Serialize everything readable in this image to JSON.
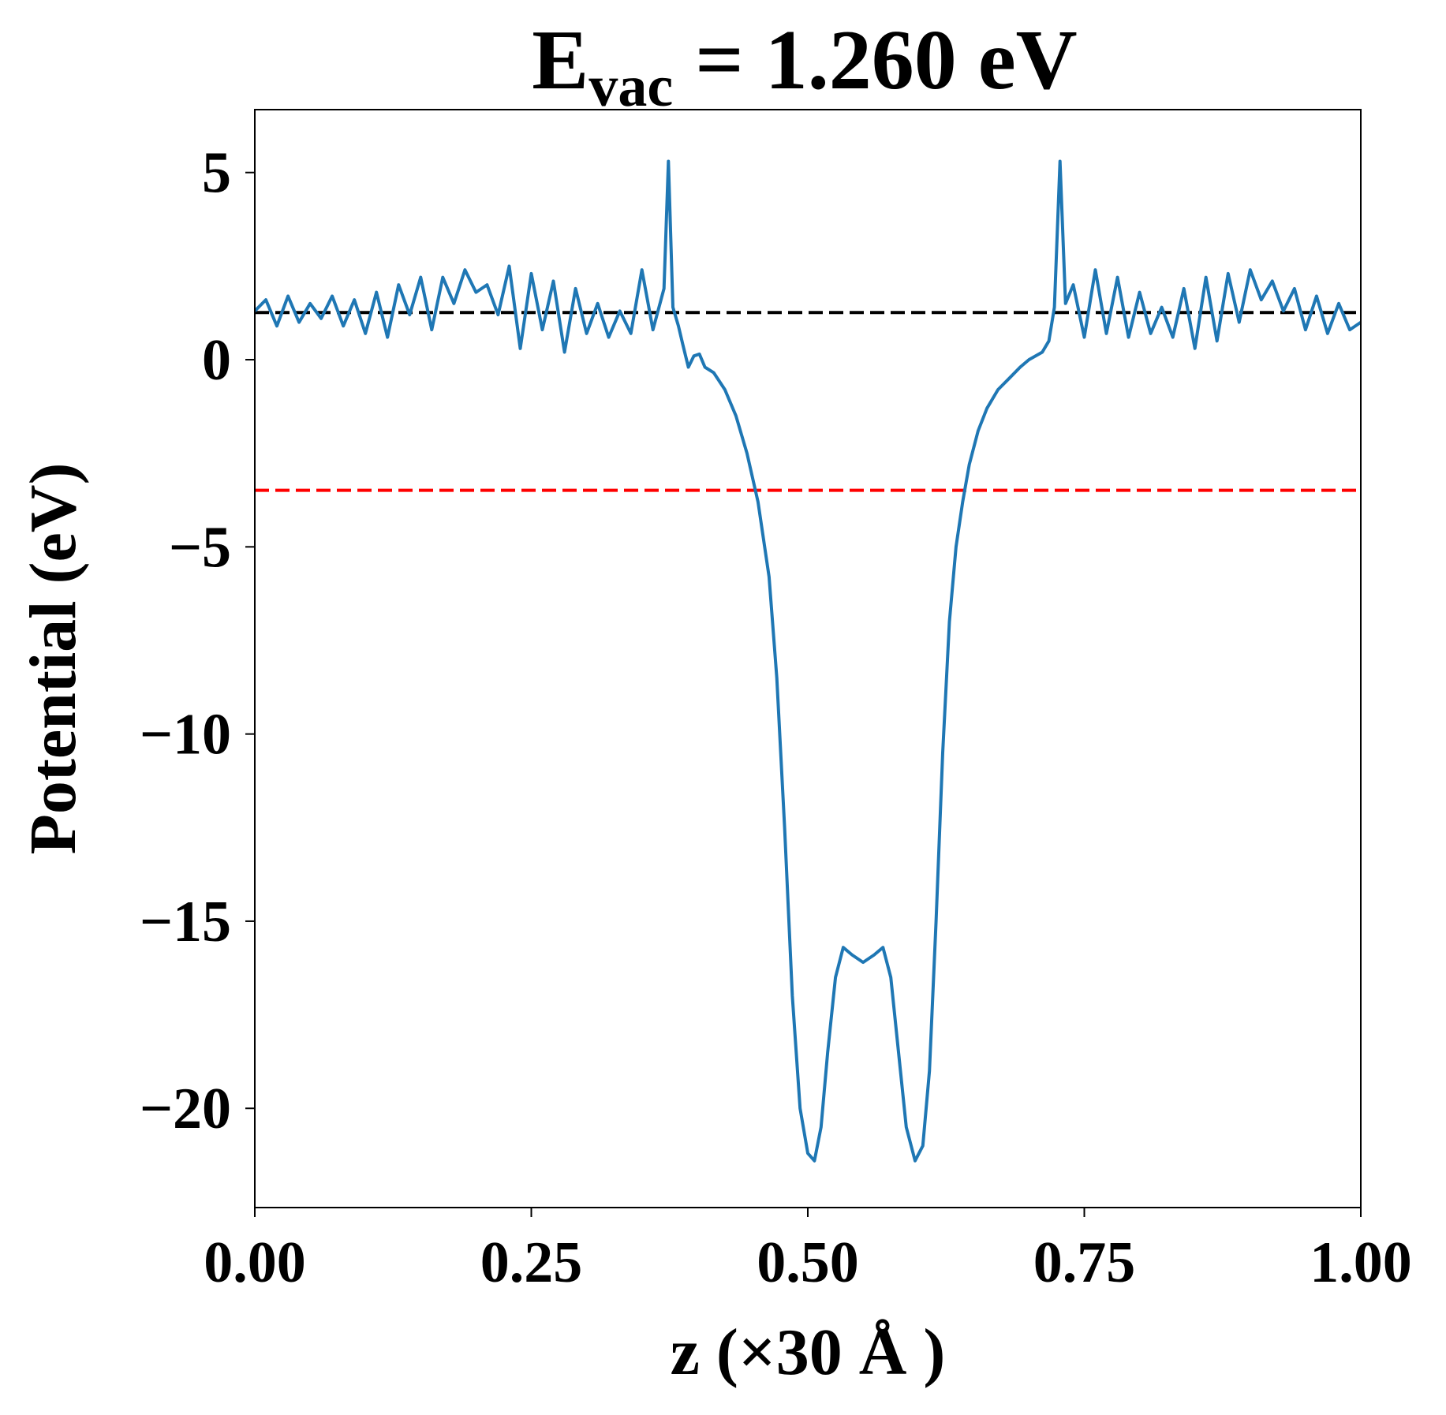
{
  "chart_data": {
    "type": "line",
    "title": {
      "main": "E",
      "sub": "vac",
      "rest": "= 1.260 eV"
    },
    "xlabel": "z (×30 Å )",
    "ylabel": "Potential (eV)",
    "x": [
      0,
      0.01,
      0.02,
      0.03,
      0.04,
      0.05,
      0.06,
      0.07,
      0.08,
      0.09,
      0.1,
      0.11,
      0.12,
      0.13,
      0.14,
      0.15,
      0.16,
      0.17,
      0.18,
      0.19,
      0.2,
      0.21,
      0.22,
      0.23,
      0.24,
      0.25,
      0.26,
      0.27,
      0.28,
      0.29,
      0.3,
      0.31,
      0.32,
      0.33,
      0.34,
      0.35,
      0.36,
      0.37,
      0.374,
      0.378,
      0.383,
      0.387,
      0.392,
      0.397,
      0.402,
      0.407,
      0.415,
      0.425,
      0.435,
      0.445,
      0.455,
      0.465,
      0.472,
      0.479,
      0.486,
      0.493,
      0.5,
      0.506,
      0.512,
      0.518,
      0.525,
      0.532,
      0.54,
      0.55,
      0.56,
      0.568,
      0.575,
      0.582,
      0.589,
      0.597,
      0.604,
      0.61,
      0.616,
      0.622,
      0.628,
      0.634,
      0.64,
      0.646,
      0.654,
      0.662,
      0.672,
      0.682,
      0.692,
      0.7,
      0.706,
      0.712,
      0.718,
      0.723,
      0.728,
      0.733,
      0.74,
      0.75,
      0.76,
      0.77,
      0.78,
      0.79,
      0.8,
      0.81,
      0.82,
      0.83,
      0.84,
      0.85,
      0.86,
      0.87,
      0.88,
      0.89,
      0.9,
      0.91,
      0.92,
      0.93,
      0.94,
      0.95,
      0.96,
      0.97,
      0.98,
      0.99,
      1.0
    ],
    "series": [
      {
        "color": "#1f77b4",
        "values": [
          1.3,
          1.6,
          0.9,
          1.7,
          1.0,
          1.5,
          1.1,
          1.7,
          0.9,
          1.6,
          0.7,
          1.8,
          0.6,
          2.0,
          1.2,
          2.2,
          0.8,
          2.2,
          1.5,
          2.4,
          1.8,
          2.0,
          1.2,
          2.5,
          0.3,
          2.3,
          0.8,
          2.1,
          0.2,
          1.9,
          0.7,
          1.5,
          0.6,
          1.3,
          0.7,
          2.4,
          0.8,
          1.9,
          5.3,
          1.4,
          0.9,
          0.4,
          -0.2,
          0.1,
          0.15,
          -0.2,
          -0.35,
          -0.8,
          -1.5,
          -2.5,
          -3.8,
          -5.8,
          -8.5,
          -12.5,
          -17,
          -20,
          -21.2,
          -21.4,
          -20.5,
          -18.5,
          -16.5,
          -15.7,
          -15.9,
          -16.1,
          -15.9,
          -15.7,
          -16.5,
          -18.5,
          -20.5,
          -21.4,
          -21,
          -19,
          -15,
          -10.5,
          -7,
          -5,
          -3.8,
          -2.8,
          -1.9,
          -1.3,
          -0.8,
          -0.5,
          -0.2,
          0,
          0.1,
          0.2,
          0.5,
          1.4,
          5.3,
          1.5,
          2.0,
          0.6,
          2.4,
          0.7,
          2.2,
          0.6,
          1.8,
          0.7,
          1.4,
          0.6,
          1.9,
          0.3,
          2.2,
          0.5,
          2.3,
          1.0,
          2.4,
          1.6,
          2.1,
          1.3,
          1.9,
          0.8,
          1.7,
          0.7,
          1.5,
          0.8,
          1.0
        ]
      }
    ],
    "hlines": [
      {
        "value": 1.26,
        "color": "#000000"
      },
      {
        "value": -3.49,
        "color": "#ff0000"
      }
    ],
    "xlim": [
      0,
      1
    ],
    "ylim": [
      -22.65,
      6.68
    ],
    "xticks": [
      {
        "value": 0,
        "label": "0.00"
      },
      {
        "value": 0.25,
        "label": "0.25"
      },
      {
        "value": 0.5,
        "label": "0.50"
      },
      {
        "value": 0.75,
        "label": "0.75"
      },
      {
        "value": 1,
        "label": "1.00"
      }
    ],
    "yticks": [
      {
        "value": -20,
        "label": "−20"
      },
      {
        "value": -15,
        "label": "−15"
      },
      {
        "value": -10,
        "label": "−10"
      },
      {
        "value": -5,
        "label": "−5"
      },
      0,
      5
    ],
    "grid": false
  }
}
